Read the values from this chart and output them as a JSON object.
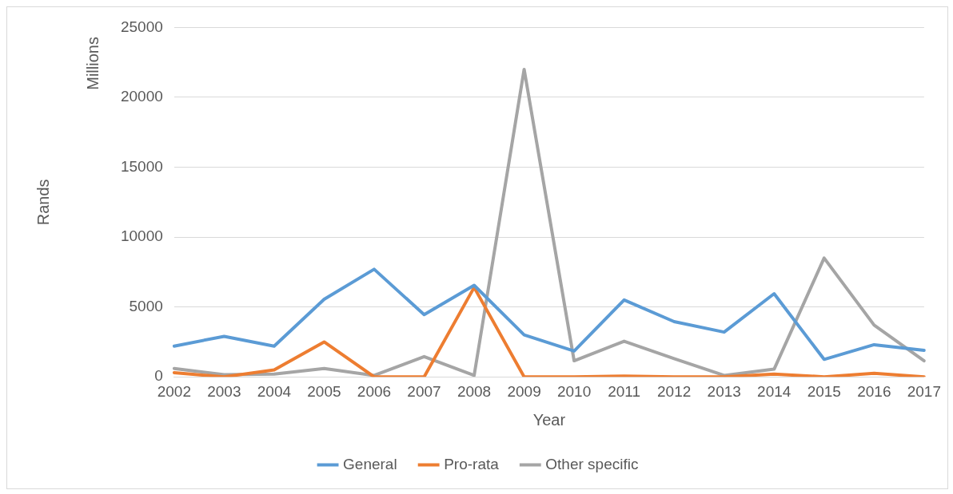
{
  "chart_data": {
    "type": "line",
    "xlabel": "Year",
    "ylabel": "Rands",
    "annotations": [
      "Millions"
    ],
    "categories": [
      "2002",
      "2003",
      "2004",
      "2005",
      "2006",
      "2007",
      "2008",
      "2009",
      "2010",
      "2011",
      "2012",
      "2013",
      "2014",
      "2015",
      "2016",
      "2017"
    ],
    "series": [
      {
        "name": "General",
        "color": "#5b9bd5",
        "values": [
          2200,
          2900,
          2200,
          5550,
          7700,
          4450,
          6550,
          3000,
          1850,
          5500,
          3950,
          3200,
          5950,
          1250,
          2300,
          1900
        ]
      },
      {
        "name": "Pro-rata",
        "color": "#ed7d31",
        "values": [
          300,
          0,
          500,
          2500,
          0,
          0,
          6400,
          0,
          0,
          50,
          0,
          0,
          200,
          0,
          250,
          0
        ]
      },
      {
        "name": "Other specific",
        "color": "#a5a5a5",
        "values": [
          600,
          150,
          200,
          600,
          100,
          1450,
          100,
          22000,
          1150,
          2550,
          1300,
          100,
          550,
          8500,
          3700,
          1150
        ]
      }
    ],
    "ylim": [
      0,
      25000
    ],
    "yticks": [
      0,
      5000,
      10000,
      15000,
      20000,
      25000
    ],
    "grid": "y",
    "legend": "bottom",
    "marker": "none",
    "line_style": "solid"
  }
}
